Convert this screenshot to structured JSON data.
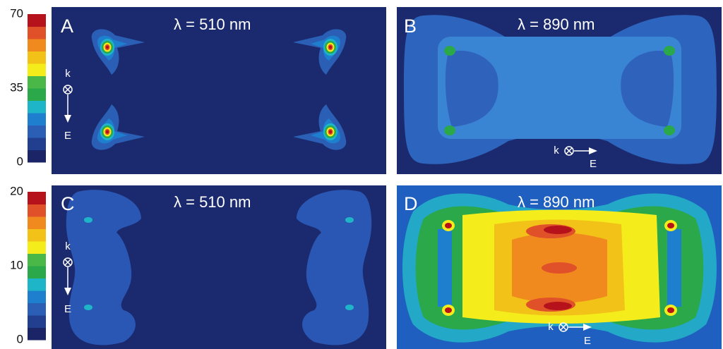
{
  "colorbars": [
    {
      "lim": [
        0,
        70
      ],
      "ticks": [
        70,
        35,
        0
      ]
    },
    {
      "lim": [
        0,
        20
      ],
      "ticks": [
        20,
        10,
        0
      ]
    }
  ],
  "colorbar_colors": [
    "#1a2466",
    "#223f8f",
    "#2a5fb5",
    "#1e7fcf",
    "#1fb5c8",
    "#2aa84a",
    "#49b848",
    "#f5ec1c",
    "#f2c218",
    "#f08a1f",
    "#e0512a",
    "#b5121b"
  ],
  "panels": [
    {
      "label": "A",
      "wavelength": "λ = 510 nm",
      "k": "k",
      "E": "E"
    },
    {
      "label": "B",
      "wavelength": "λ = 890 nm",
      "k": "k",
      "E": "E"
    },
    {
      "label": "C",
      "wavelength": "λ = 510 nm",
      "k": "k",
      "E": "E"
    },
    {
      "label": "D",
      "wavelength": "λ = 890 nm",
      "k": "k",
      "E": "E"
    }
  ]
}
